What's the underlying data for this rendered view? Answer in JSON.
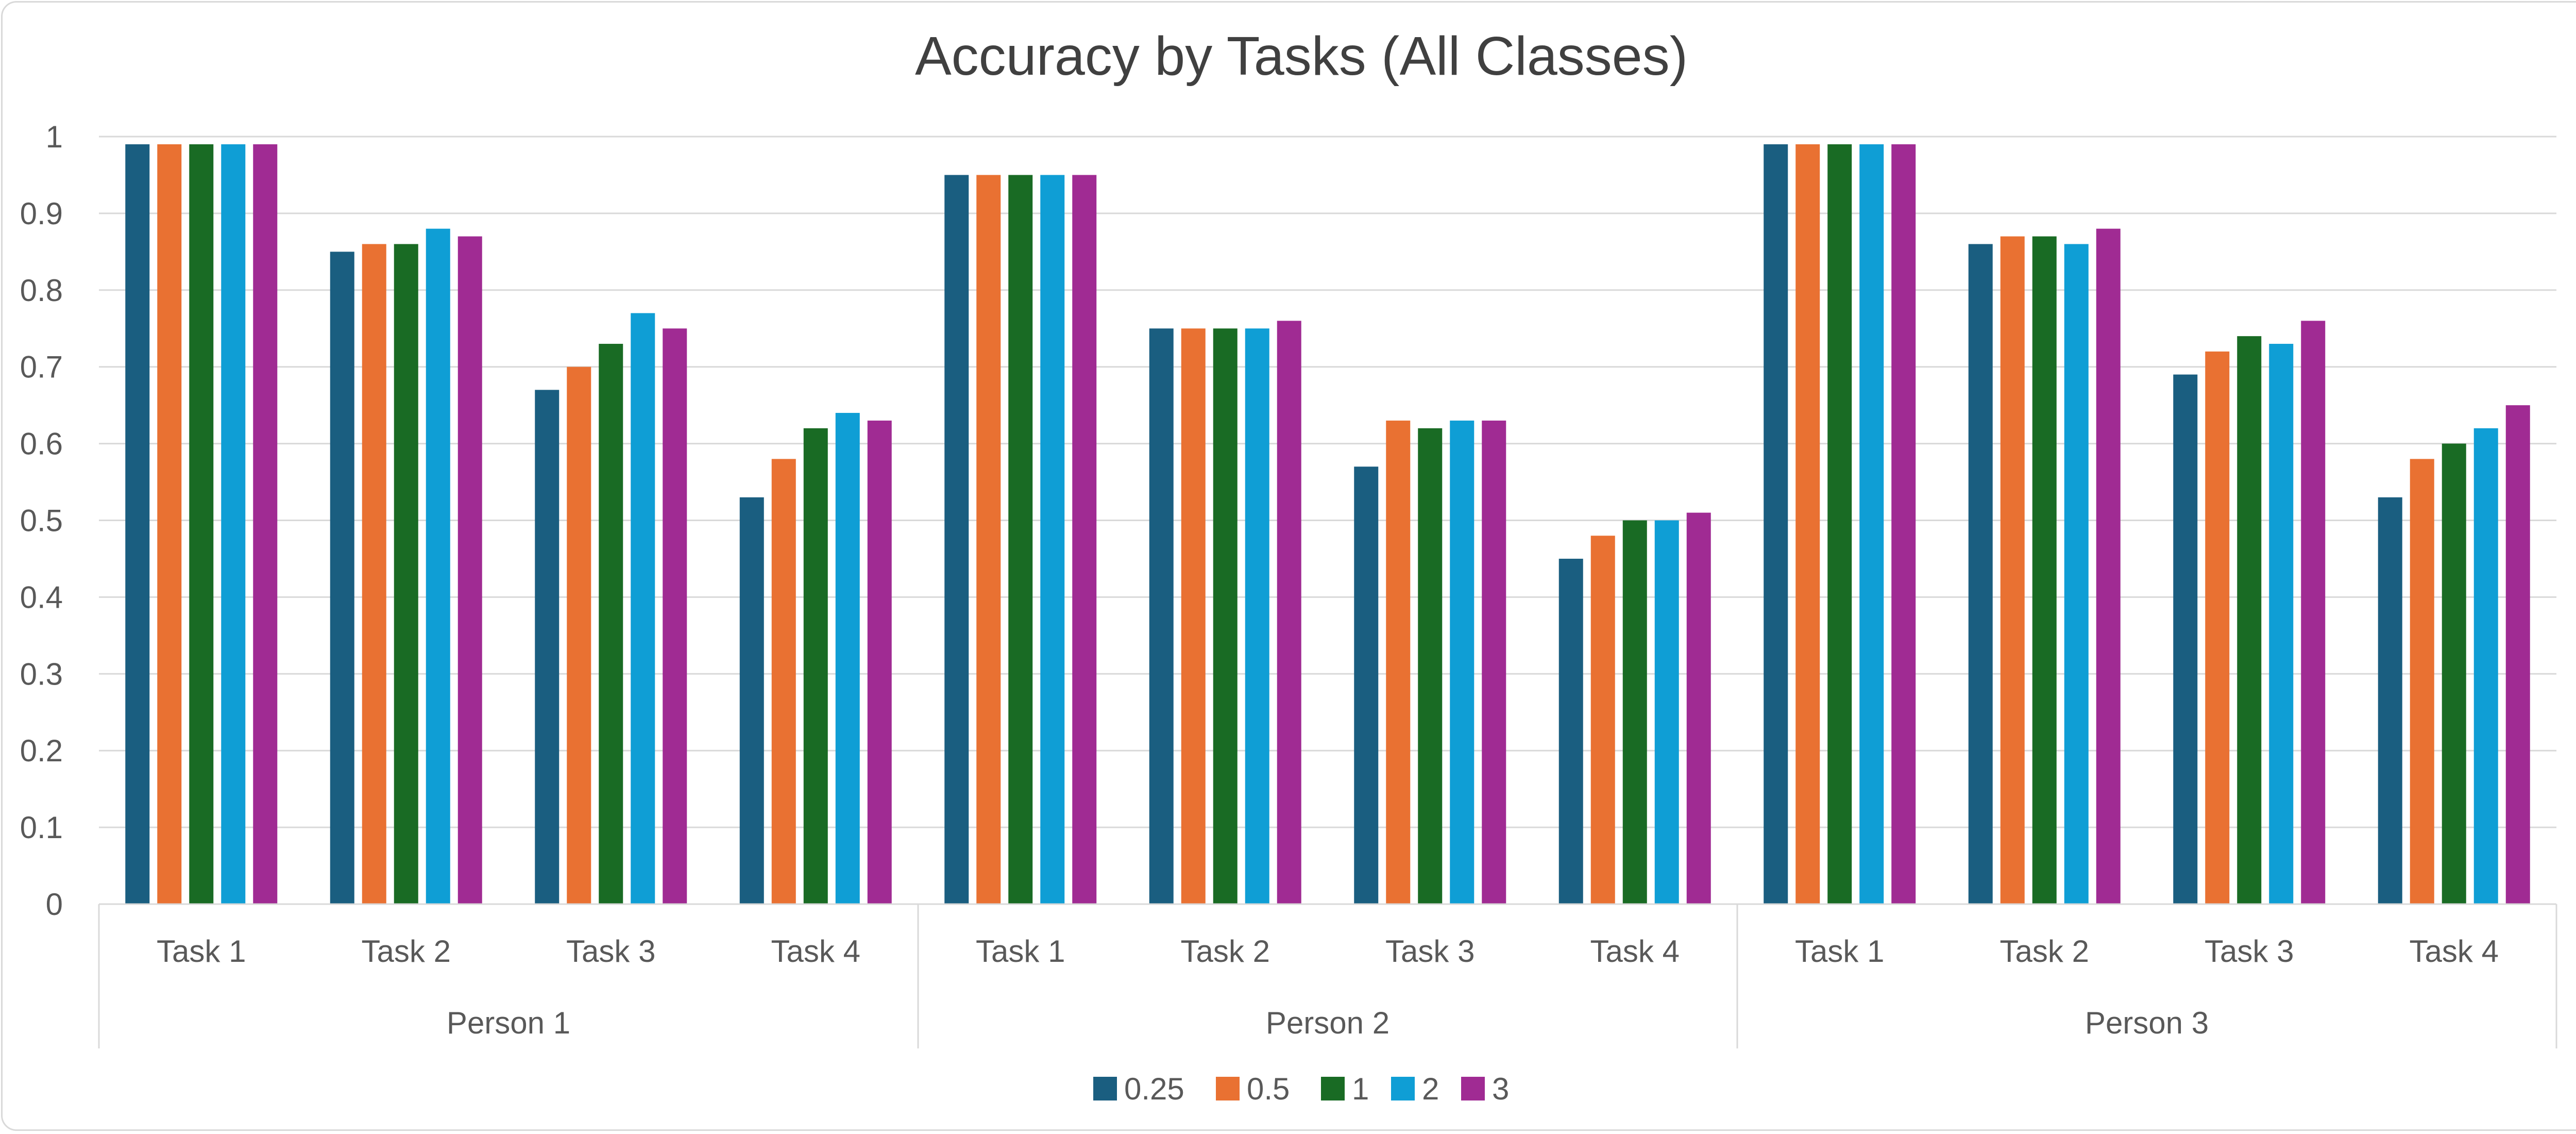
{
  "chart_data": {
    "type": "bar",
    "title": "Accuracy by Tasks (All Classes)",
    "xlabel": "",
    "ylabel": "",
    "ylim": [
      0,
      1
    ],
    "yticks": [
      "0",
      "0.1",
      "0.2",
      "0.3",
      "0.4",
      "0.5",
      "0.6",
      "0.7",
      "0.8",
      "0.9",
      "1"
    ],
    "grid": true,
    "legend_position": "bottom",
    "groups": [
      {
        "name": "Person 1",
        "categories": [
          "Task 1",
          "Task 2",
          "Task 3",
          "Task 4"
        ]
      },
      {
        "name": "Person 2",
        "categories": [
          "Task 1",
          "Task 2",
          "Task 3",
          "Task 4"
        ]
      },
      {
        "name": "Person 3",
        "categories": [
          "Task 1",
          "Task 2",
          "Task 3",
          "Task 4"
        ]
      }
    ],
    "categories": [
      "Task 1",
      "Task 2",
      "Task 3",
      "Task 4",
      "Task 1",
      "Task 2",
      "Task 3",
      "Task 4",
      "Task 1",
      "Task 2",
      "Task 3",
      "Task 4"
    ],
    "series": [
      {
        "name": "0.25",
        "color": "#1a5e80",
        "values": [
          0.99,
          0.85,
          0.67,
          0.53,
          0.95,
          0.75,
          0.57,
          0.45,
          0.99,
          0.86,
          0.69,
          0.53
        ]
      },
      {
        "name": "0.5",
        "color": "#e97132",
        "values": [
          0.99,
          0.86,
          0.7,
          0.58,
          0.95,
          0.75,
          0.63,
          0.48,
          0.99,
          0.87,
          0.72,
          0.58
        ]
      },
      {
        "name": "1",
        "color": "#196b24",
        "values": [
          0.99,
          0.86,
          0.73,
          0.62,
          0.95,
          0.75,
          0.62,
          0.5,
          0.99,
          0.87,
          0.74,
          0.6
        ]
      },
      {
        "name": "2",
        "color": "#0f9ed5",
        "values": [
          0.99,
          0.88,
          0.77,
          0.64,
          0.95,
          0.75,
          0.63,
          0.5,
          0.99,
          0.86,
          0.73,
          0.62
        ]
      },
      {
        "name": "3",
        "color": "#a02b93",
        "values": [
          0.99,
          0.87,
          0.75,
          0.63,
          0.95,
          0.76,
          0.63,
          0.51,
          0.99,
          0.88,
          0.76,
          0.65
        ]
      }
    ]
  }
}
